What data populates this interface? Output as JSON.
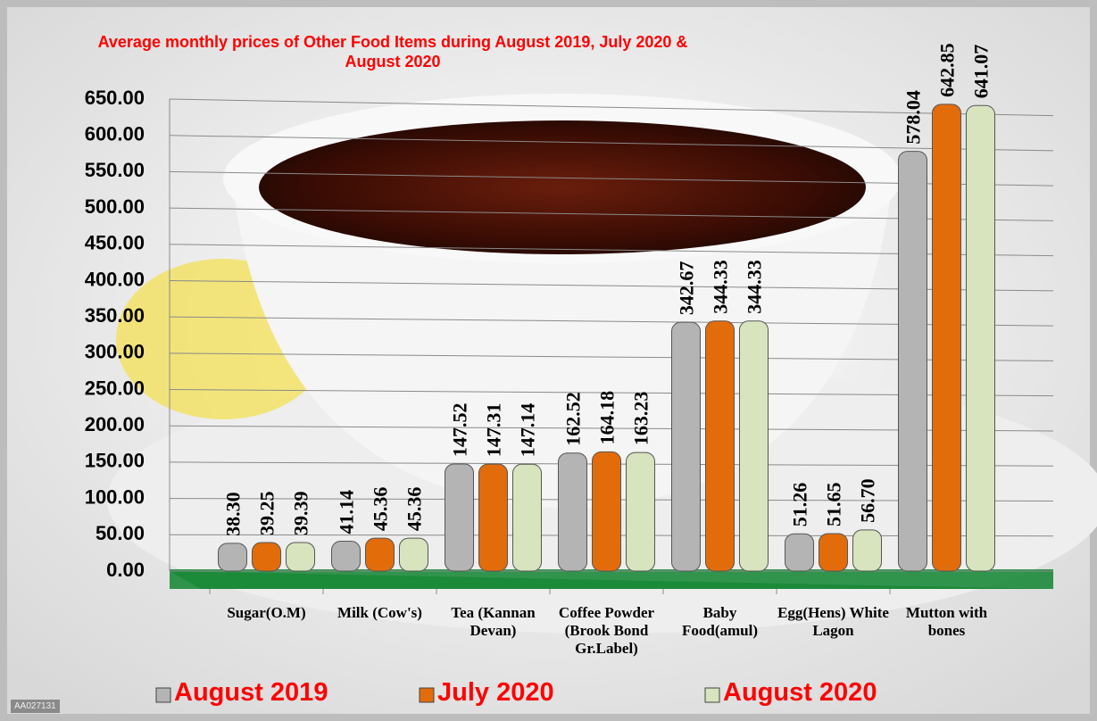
{
  "chart_data": {
    "type": "bar",
    "title": "Average monthly prices of Other Food Items during August  2019, July  2020 & August 2020",
    "watermark": "AA027131",
    "categories": [
      "Sugar(O.M)",
      "Milk (Cow's)",
      "Tea (Kannan Devan)",
      "Coffee Powder (Brook Bond Gr.Label)",
      "Baby Food(amul)",
      "Egg(Hens) White Lagon",
      "Mutton with bones"
    ],
    "series": [
      {
        "name": "August 2019",
        "color": "#b4b4b4",
        "values": [
          38.3,
          41.14,
          147.52,
          162.52,
          342.67,
          51.26,
          578.04
        ],
        "value_labels": [
          "38.30",
          "41.14",
          "147.52",
          "162.52",
          "342.67",
          "51.26",
          "578.04"
        ]
      },
      {
        "name": "July 2020",
        "color": "#e36c0a",
        "values": [
          39.25,
          45.36,
          147.31,
          164.18,
          344.33,
          51.65,
          642.85
        ],
        "value_labels": [
          "39.25",
          "45.36",
          "147.31",
          "164.18",
          "344.33",
          "51.65",
          "642.85"
        ]
      },
      {
        "name": "August 2020",
        "color": "#d7e4bd",
        "values": [
          39.39,
          45.36,
          147.14,
          163.23,
          344.33,
          56.7,
          641.07
        ],
        "value_labels": [
          "39.39",
          "45.36",
          "147.14",
          "163.23",
          "344.33",
          "56.70",
          "641.07"
        ]
      }
    ],
    "ylim": [
      0,
      650
    ],
    "yticks": [
      {
        "value": 0,
        "label": "0.00"
      },
      {
        "value": 50,
        "label": "50.00"
      },
      {
        "value": 100,
        "label": "100.00"
      },
      {
        "value": 150,
        "label": "150.00"
      },
      {
        "value": 200,
        "label": "200.00"
      },
      {
        "value": 250,
        "label": "250.00"
      },
      {
        "value": 300,
        "label": "300.00"
      },
      {
        "value": 350,
        "label": "350.00"
      },
      {
        "value": 400,
        "label": "400.00"
      },
      {
        "value": 450,
        "label": "450.00"
      },
      {
        "value": 500,
        "label": "500.00"
      },
      {
        "value": 550,
        "label": "550.00"
      },
      {
        "value": 600,
        "label": "600.00"
      },
      {
        "value": 650,
        "label": "650.00"
      }
    ],
    "grid": true
  }
}
